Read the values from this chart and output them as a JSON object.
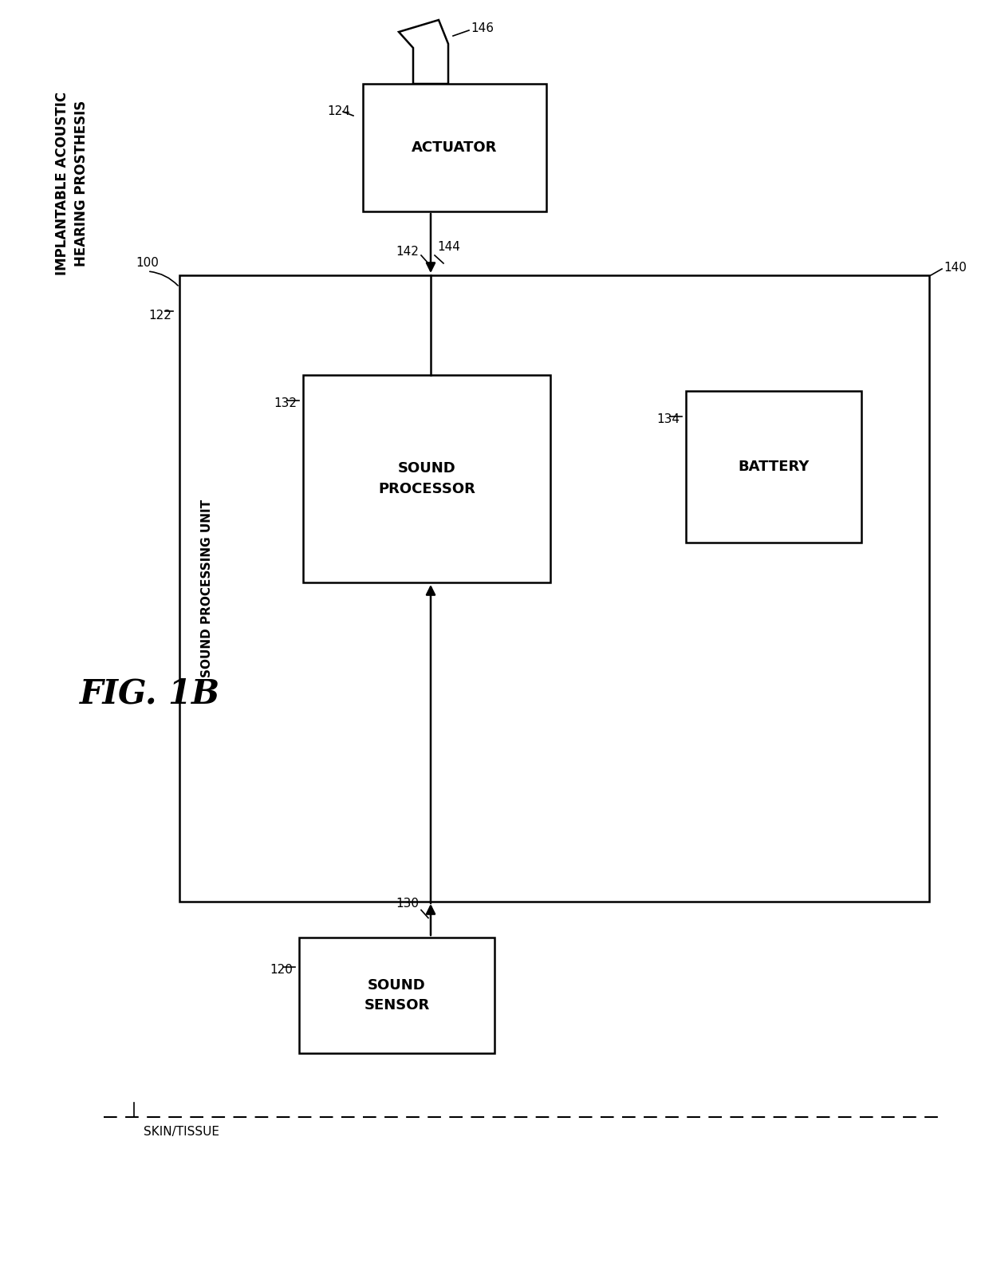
{
  "bg_color": "#ffffff",
  "line_color": "#000000",
  "fig_label": "FIG. 1B",
  "implant_label_line1": "IMPLANTABLE ACOUSTIC",
  "implant_label_line2": "HEARING PROSTHESIS",
  "implant_ref": "100",
  "skin_tissue_label": "SKIN/TISSUE",
  "spu_label": "SOUND PROCESSING UNIT",
  "spu_ref": "122",
  "sp_label": "SOUND\nPROCESSOR",
  "sp_ref": "132",
  "battery_label": "BATTERY",
  "battery_ref": "134",
  "actuator_label": "ACTUATOR",
  "actuator_ref": "124",
  "sound_sensor_label": "SOUND\nSENSOR",
  "sound_sensor_ref": "120",
  "ref_140": "140",
  "ref_142": "142",
  "ref_144": "144",
  "ref_146": "146",
  "ref_130": "130"
}
